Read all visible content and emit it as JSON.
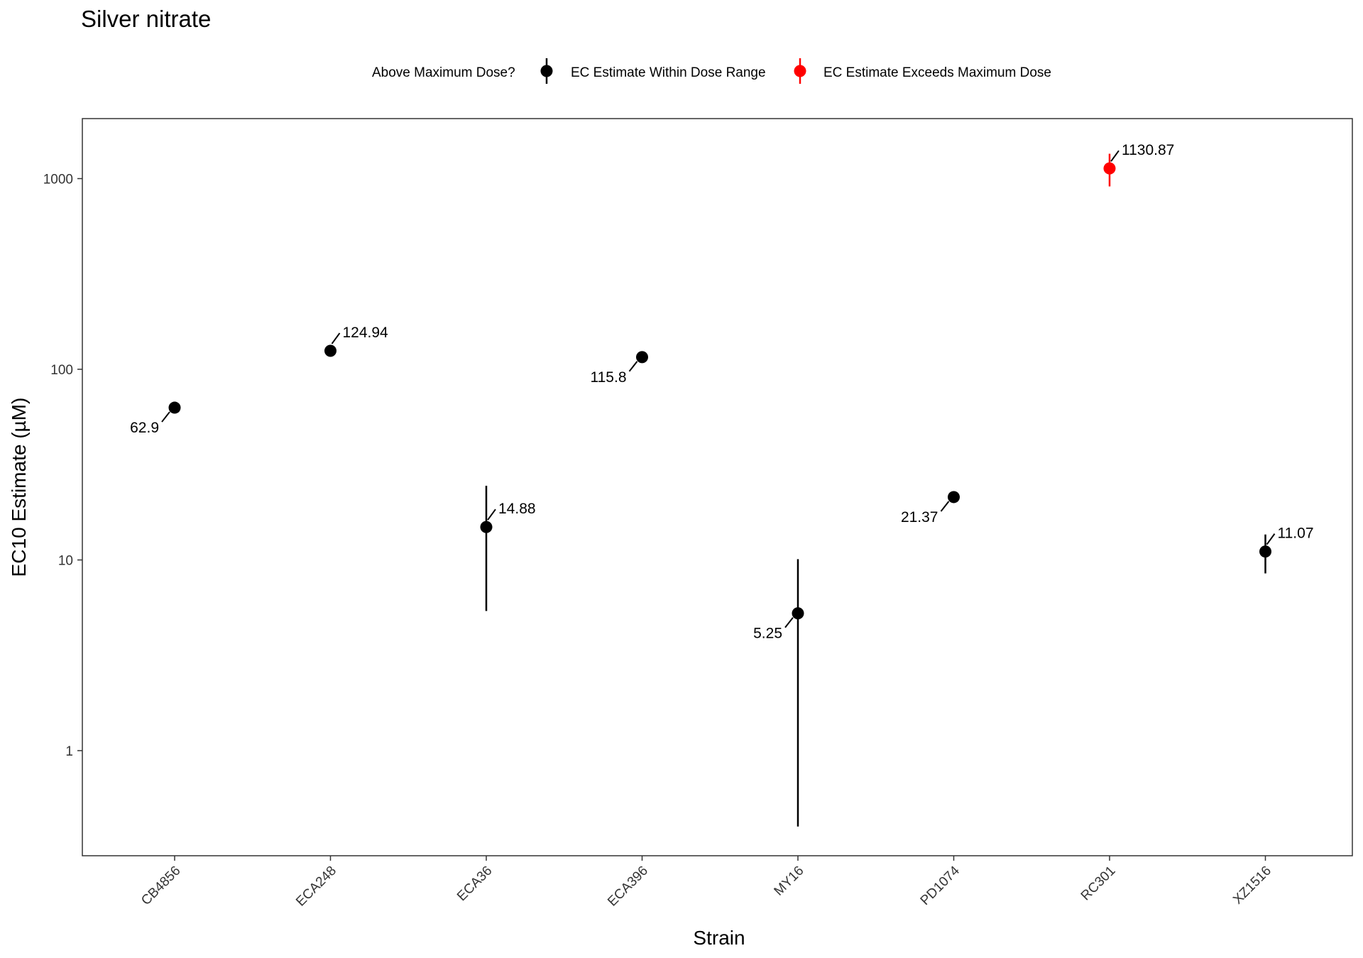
{
  "chart_data": {
    "type": "scatter",
    "title": "Silver nitrate",
    "xlabel": "Strain",
    "ylabel": "EC10 Estimate (µM)",
    "y_scale": "log10",
    "ylim": [
      0.26,
      2000
    ],
    "y_ticks": [
      1,
      10,
      100,
      1000
    ],
    "y_tick_labels": [
      "1",
      "10",
      "100",
      "1000"
    ],
    "grid": false,
    "legend": {
      "position": "top",
      "title": "Above Maximum Dose?",
      "entries": [
        {
          "label": "EC Estimate Within Dose Range",
          "color": "#000000"
        },
        {
          "label": "EC Estimate Exceeds Maximum Dose",
          "color": "#ff0000"
        }
      ]
    },
    "categories": [
      "CB4856",
      "ECA248",
      "ECA36",
      "ECA396",
      "MY16",
      "PD1074",
      "RC301",
      "XZ1516"
    ],
    "points": [
      {
        "strain": "CB4856",
        "value": 62.9,
        "label": "62.9",
        "ci_low": 62.9,
        "ci_high": 62.9,
        "exceeds_max": false,
        "label_side": "left"
      },
      {
        "strain": "ECA248",
        "value": 124.94,
        "label": "124.94",
        "ci_low": 124.94,
        "ci_high": 124.94,
        "exceeds_max": false,
        "label_side": "right"
      },
      {
        "strain": "ECA36",
        "value": 14.88,
        "label": "14.88",
        "ci_low": 5.4,
        "ci_high": 24.5,
        "exceeds_max": false,
        "label_side": "right"
      },
      {
        "strain": "ECA396",
        "value": 115.8,
        "label": "115.8",
        "ci_low": 115.8,
        "ci_high": 115.8,
        "exceeds_max": false,
        "label_side": "left"
      },
      {
        "strain": "MY16",
        "value": 5.25,
        "label": "5.25",
        "ci_low": 0.4,
        "ci_high": 10.1,
        "exceeds_max": false,
        "label_side": "left"
      },
      {
        "strain": "PD1074",
        "value": 21.37,
        "label": "21.37",
        "ci_low": 21.37,
        "ci_high": 21.37,
        "exceeds_max": false,
        "label_side": "left"
      },
      {
        "strain": "RC301",
        "value": 1130.87,
        "label": "1130.87",
        "ci_low": 910,
        "ci_high": 1350,
        "exceeds_max": true,
        "label_side": "right"
      },
      {
        "strain": "XZ1516",
        "value": 11.07,
        "label": "11.07",
        "ci_low": 8.5,
        "ci_high": 13.6,
        "exceeds_max": false,
        "label_side": "right"
      }
    ],
    "colors": {
      "within": "#000000",
      "exceeds": "#ff0000",
      "panel_border": "#333333",
      "tick_text": "#333333"
    }
  }
}
